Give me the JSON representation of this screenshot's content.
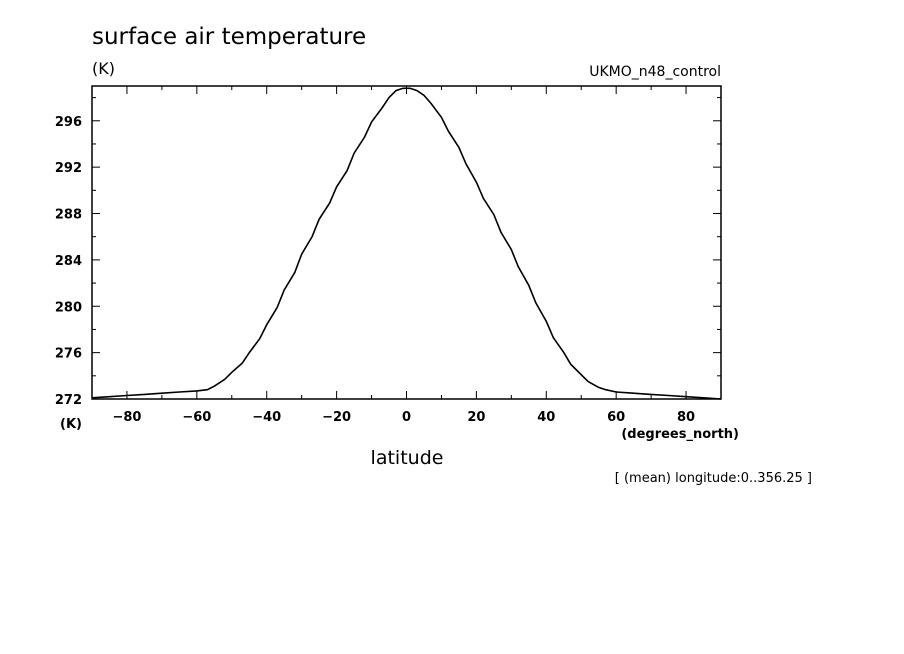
{
  "chart_data": {
    "type": "line",
    "title": "surface air temperature",
    "y_unit_top": "(K)",
    "y_unit_bottom": "(K)",
    "dataset_label": "UKMO_n48_control",
    "xlabel": "latitude",
    "x_unit": "(degrees_north)",
    "note": "[ (mean) longitude:0..356.25 ]",
    "xlim": [
      -90,
      90
    ],
    "ylim": [
      272,
      299
    ],
    "x_ticks": [
      -80,
      -60,
      -40,
      -20,
      0,
      20,
      40,
      60,
      80
    ],
    "x_tick_labels": [
      "-80",
      "-60",
      "-40",
      "-20",
      "0",
      "20",
      "40",
      "60",
      "80"
    ],
    "y_ticks": [
      272,
      276,
      280,
      284,
      288,
      292,
      296
    ],
    "y_tick_labels": [
      "272",
      "276",
      "280",
      "284",
      "288",
      "292",
      "296"
    ],
    "grid": false,
    "series": [
      {
        "x": [
          -90,
          -85,
          -80,
          -75,
          -70,
          -65,
          -60,
          -57,
          -55,
          -52,
          -50,
          -47,
          -45,
          -42,
          -40,
          -37,
          -35,
          -32,
          -30,
          -27,
          -25,
          -22,
          -20,
          -17,
          -15,
          -12,
          -10,
          -7,
          -5,
          -3,
          -1,
          0,
          1,
          3,
          5,
          7,
          10,
          12,
          15,
          17,
          20,
          22,
          25,
          27,
          30,
          32,
          35,
          37,
          40,
          42,
          45,
          47,
          50,
          52,
          55,
          57,
          60,
          65,
          70,
          75,
          80,
          85,
          90
        ],
        "y": [
          272.1,
          272.2,
          272.3,
          272.4,
          272.5,
          272.6,
          272.7,
          272.8,
          273.1,
          273.7,
          274.3,
          275.1,
          276.0,
          277.2,
          278.4,
          279.9,
          281.4,
          282.9,
          284.5,
          286.0,
          287.5,
          288.9,
          290.3,
          291.7,
          293.2,
          294.6,
          295.9,
          297.1,
          298.0,
          298.6,
          298.8,
          298.8,
          298.8,
          298.6,
          298.2,
          297.5,
          296.3,
          295.1,
          293.7,
          292.3,
          290.7,
          289.3,
          287.9,
          286.4,
          284.9,
          283.4,
          281.8,
          280.3,
          278.7,
          277.3,
          276.0,
          275.0,
          274.1,
          273.5,
          273.0,
          272.8,
          272.6,
          272.5,
          272.4,
          272.3,
          272.2,
          272.1,
          272.0
        ]
      }
    ]
  }
}
